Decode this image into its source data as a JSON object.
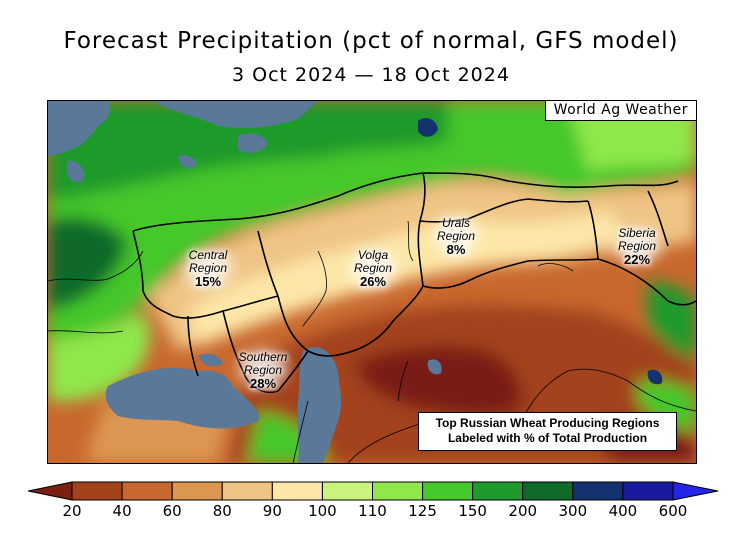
{
  "title": "Forecast Precipitation (pct of normal, GFS model)",
  "subtitle": "3 Oct 2024 — 18 Oct 2024",
  "credit": "World Ag Weather",
  "regions": [
    {
      "name": "Central",
      "line1": "Central",
      "line2": "Region",
      "pct": "15%"
    },
    {
      "name": "Volga",
      "line1": "Volga",
      "line2": "Region",
      "pct": "26%"
    },
    {
      "name": "Urals",
      "line1": "Urals",
      "line2": "Region",
      "pct": "8%"
    },
    {
      "name": "Siberia",
      "line1": "Siberia",
      "line2": "Region",
      "pct": "22%"
    },
    {
      "name": "Southern",
      "line1": "Southern",
      "line2": "Region",
      "pct": "28%"
    }
  ],
  "note": {
    "line1": "Top Russian Wheat Producing Regions",
    "line2": "Labeled with % of Total Production"
  },
  "legend": {
    "ticks": [
      "20",
      "40",
      "60",
      "80",
      "90",
      "100",
      "110",
      "125",
      "150",
      "200",
      "300",
      "400",
      "600"
    ],
    "colors": [
      "#7a1f12",
      "#a3431c",
      "#c8682e",
      "#dd9652",
      "#efc585",
      "#fde7a8",
      "#c9f37c",
      "#8ee84c",
      "#45c82c",
      "#1f9a2c",
      "#0f6a2c",
      "#14326f",
      "#1a1a9c",
      "#2525e8"
    ],
    "below_color": "#7a1f12",
    "above_color": "#2525e8"
  },
  "colors": {
    "water": "#5a7898",
    "dry_dark": "#7a1f12",
    "dry": "#a3431c",
    "brown": "#c8682e",
    "tan": "#dd9652",
    "light": "#efc585",
    "green_light": "#8ee84c",
    "green": "#45c82c",
    "green_dark": "#1f9a2c",
    "green_deep": "#0f6a2c",
    "navy": "#14326f"
  }
}
